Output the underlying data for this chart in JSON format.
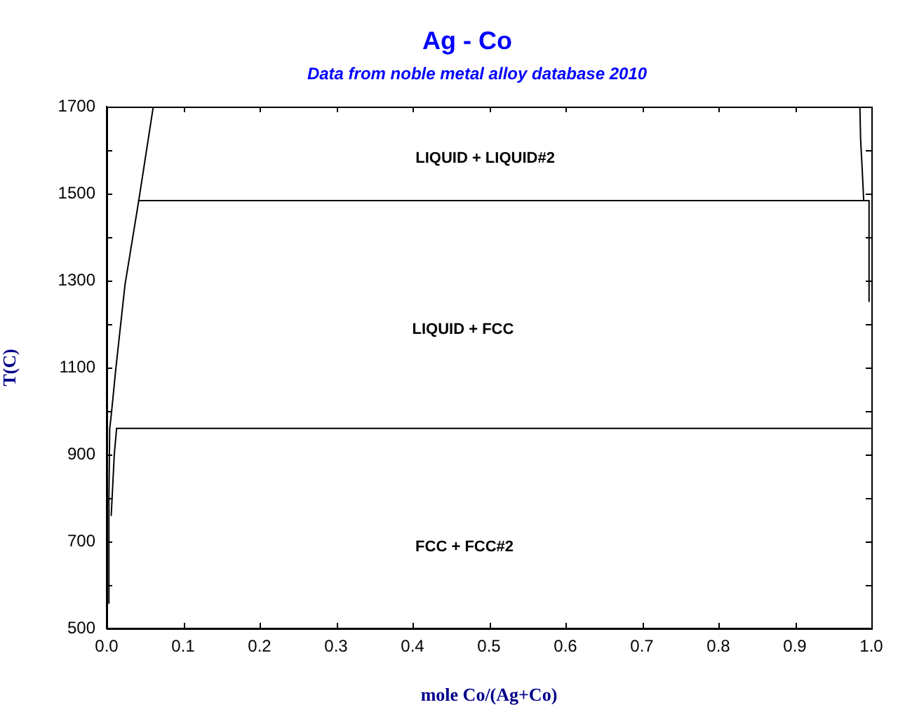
{
  "chart_data": {
    "type": "line",
    "title": "Ag - Co",
    "subtitle": "Data from noble metal alloy database 2010",
    "xlabel": "mole Co/(Ag+Co)",
    "ylabel": "T(C)",
    "xlim": [
      0,
      1
    ],
    "ylim": [
      500,
      1700
    ],
    "xticks": [
      {
        "value": 0,
        "label": "0.0"
      },
      0.1,
      0.2,
      0.3,
      0.4,
      0.5,
      0.6,
      0.7,
      0.8,
      0.9,
      {
        "value": 1,
        "label": "1.0"
      }
    ],
    "yticks": [
      500,
      {
        "value": 600,
        "label": null
      },
      700,
      {
        "value": 800,
        "label": null
      },
      900,
      {
        "value": 1000,
        "label": null
      },
      1100,
      {
        "value": 1200,
        "label": null
      },
      1300,
      {
        "value": 1400,
        "label": null
      },
      1500,
      {
        "value": 1600,
        "label": null
      },
      1700
    ],
    "grid": false,
    "marker": "none",
    "line_style": "solid",
    "series": [
      {
        "color": "#000000",
        "x": [
          0.061,
          0.042,
          0.024,
          0.012,
          0.006,
          0.004,
          0.003,
          0.003
        ],
        "values": [
          1700,
          1484,
          1290,
          1097,
          990,
          960,
          800,
          558
        ]
      },
      {
        "color": "#000000",
        "x": [
          0.013,
          0.01,
          0.006
        ],
        "values": [
          960,
          900,
          760
        ]
      },
      {
        "color": "#000000",
        "x": [
          0.013,
          1.0
        ],
        "values": [
          960,
          960
        ]
      },
      {
        "color": "#000000",
        "x": [
          0.042,
          0.996
        ],
        "values": [
          1484,
          1484
        ]
      },
      {
        "color": "#000000",
        "x": [
          0.985,
          0.986,
          0.988,
          0.99
        ],
        "values": [
          1700,
          1623,
          1558,
          1484
        ]
      },
      {
        "color": "#000000",
        "x": [
          0.997,
          0.997
        ],
        "values": [
          1484,
          1252
        ]
      }
    ],
    "annotations": [
      "LIQUID + LIQUID#2",
      "LIQUID + FCC",
      "FCC + FCC#2"
    ]
  }
}
